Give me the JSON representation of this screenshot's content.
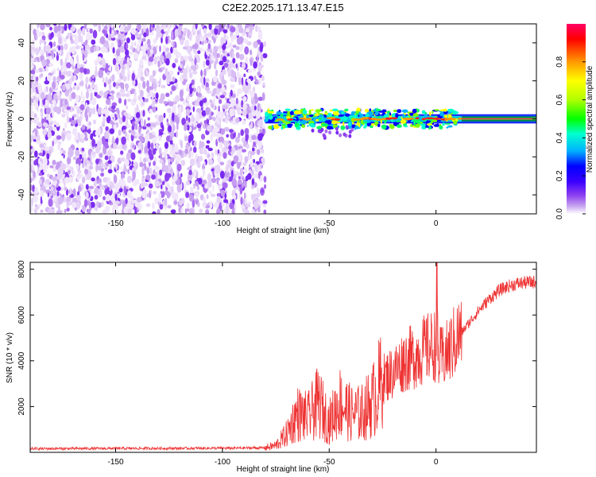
{
  "title": "C2E2.2025.171.13.47.E15",
  "chart_data": [
    {
      "type": "heatmap",
      "xlabel": "Height of straight line (km)",
      "ylabel": "Frequency (Hz)",
      "xlim": [
        -190,
        47
      ],
      "ylim": [
        -50,
        50
      ],
      "xticks": [
        -150,
        -100,
        -50,
        0
      ],
      "yticks": [
        -40,
        -20,
        0,
        20,
        40
      ],
      "noise_region_x": [
        -190,
        -80
      ],
      "signal_region_x": [
        -80,
        47
      ],
      "signal_frequency_center": 0,
      "signal_frequency_halfwidth": 2,
      "colorbar": {
        "label": "Normalized spectral amplitude",
        "range": [
          0,
          1
        ],
        "ticks": [
          0.0,
          0.2,
          0.4,
          0.6,
          0.8
        ],
        "colormap": [
          "#ffffff",
          "#c9a6f0",
          "#8a3df0",
          "#3a00ff",
          "#0000ff",
          "#00b0ff",
          "#00ffd0",
          "#00ff00",
          "#b0ff00",
          "#ffff00",
          "#ff9900",
          "#ff0000",
          "#ff0066"
        ]
      }
    },
    {
      "type": "line",
      "xlabel": "Height of straight line (km)",
      "ylabel": "SNR (10 * v/v)",
      "xlim": [
        -190,
        47
      ],
      "ylim": [
        0,
        8300
      ],
      "xticks": [
        -150,
        -100,
        -50,
        0
      ],
      "yticks": [
        2000,
        4000,
        6000,
        8000
      ],
      "color": "#ee3333",
      "points": [
        [
          -190,
          160
        ],
        [
          -150,
          170
        ],
        [
          -100,
          180
        ],
        [
          -80,
          200
        ],
        [
          -75,
          300
        ],
        [
          -70,
          800
        ],
        [
          -65,
          1700
        ],
        [
          -60,
          1500
        ],
        [
          -55,
          2200
        ],
        [
          -50,
          1300
        ],
        [
          -45,
          2200
        ],
        [
          -40,
          1700
        ],
        [
          -35,
          1700
        ],
        [
          -30,
          2200
        ],
        [
          -25,
          3200
        ],
        [
          -20,
          3500
        ],
        [
          -15,
          4000
        ],
        [
          -10,
          4200
        ],
        [
          -5,
          4500
        ],
        [
          0,
          4700
        ],
        [
          0.5,
          8300
        ],
        [
          1,
          4000
        ],
        [
          5,
          4300
        ],
        [
          10,
          5000
        ],
        [
          15,
          5600
        ],
        [
          20,
          6200
        ],
        [
          25,
          6700
        ],
        [
          30,
          7100
        ],
        [
          35,
          7300
        ],
        [
          40,
          7400
        ],
        [
          47,
          7450
        ]
      ]
    }
  ]
}
